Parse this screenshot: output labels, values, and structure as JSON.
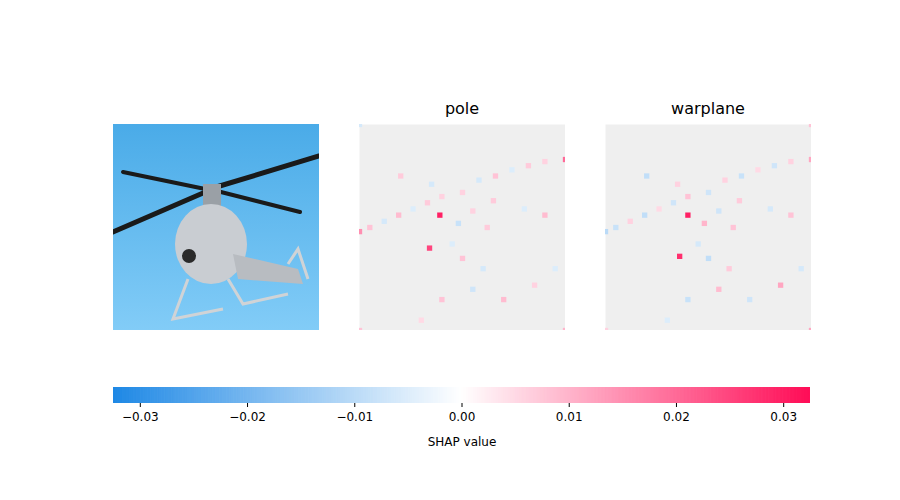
{
  "chart_data": {
    "type": "image_heatmaps",
    "panels": [
      {
        "type": "image"
      },
      {
        "type": "heatmap",
        "title": "pole",
        "image_width": 100,
        "image_height": 100,
        "cells": [
          {
            "x": 39,
            "y": 44,
            "value": 0.03
          },
          {
            "x": 34,
            "y": 60,
            "value": 0.025
          },
          {
            "x": 100,
            "y": 17,
            "value": 0.02
          },
          {
            "x": 0,
            "y": 52,
            "value": 0.015
          },
          {
            "x": 5,
            "y": 50,
            "value": 0.008
          },
          {
            "x": 12,
            "y": 47,
            "value": -0.006
          },
          {
            "x": 19,
            "y": 44,
            "value": 0.009
          },
          {
            "x": 26,
            "y": 41,
            "value": -0.005
          },
          {
            "x": 33,
            "y": 38,
            "value": 0.007
          },
          {
            "x": 40,
            "y": 35,
            "value": 0.006
          },
          {
            "x": 58,
            "y": 27,
            "value": -0.006
          },
          {
            "x": 66,
            "y": 25,
            "value": 0.008
          },
          {
            "x": 74,
            "y": 22,
            "value": -0.005
          },
          {
            "x": 82,
            "y": 20,
            "value": 0.007
          },
          {
            "x": 90,
            "y": 18,
            "value": 0.006
          },
          {
            "x": 20,
            "y": 25,
            "value": 0.007
          },
          {
            "x": 35,
            "y": 29,
            "value": -0.006
          },
          {
            "x": 50,
            "y": 33,
            "value": 0.006
          },
          {
            "x": 65,
            "y": 37,
            "value": 0.007
          },
          {
            "x": 80,
            "y": 41,
            "value": -0.005
          },
          {
            "x": 90,
            "y": 44,
            "value": 0.009
          },
          {
            "x": 48,
            "y": 48,
            "value": -0.008
          },
          {
            "x": 55,
            "y": 42,
            "value": 0.006
          },
          {
            "x": 62,
            "y": 50,
            "value": 0.007
          },
          {
            "x": 50,
            "y": 65,
            "value": 0.008
          },
          {
            "x": 60,
            "y": 70,
            "value": -0.006
          },
          {
            "x": 45,
            "y": 58,
            "value": -0.005
          },
          {
            "x": 40,
            "y": 85,
            "value": 0.008
          },
          {
            "x": 55,
            "y": 80,
            "value": -0.007
          },
          {
            "x": 70,
            "y": 85,
            "value": 0.009
          },
          {
            "x": 85,
            "y": 78,
            "value": 0.006
          },
          {
            "x": 95,
            "y": 70,
            "value": -0.005
          },
          {
            "x": 30,
            "y": 95,
            "value": 0.005
          },
          {
            "x": 0,
            "y": 0,
            "value": -0.006
          },
          {
            "x": 100,
            "y": 100,
            "value": 0.01
          },
          {
            "x": 0,
            "y": 100,
            "value": 0.008
          }
        ]
      },
      {
        "type": "heatmap",
        "title": "warplane",
        "image_width": 100,
        "image_height": 100,
        "cells": [
          {
            "x": 40,
            "y": 44,
            "value": 0.03
          },
          {
            "x": 36,
            "y": 64,
            "value": 0.028
          },
          {
            "x": 100,
            "y": 17,
            "value": 0.012
          },
          {
            "x": 0,
            "y": 52,
            "value": -0.01
          },
          {
            "x": 5,
            "y": 50,
            "value": -0.008
          },
          {
            "x": 12,
            "y": 47,
            "value": 0.006
          },
          {
            "x": 19,
            "y": 44,
            "value": -0.009
          },
          {
            "x": 26,
            "y": 41,
            "value": 0.005
          },
          {
            "x": 33,
            "y": 38,
            "value": -0.007
          },
          {
            "x": 40,
            "y": 35,
            "value": 0.008
          },
          {
            "x": 58,
            "y": 27,
            "value": 0.006
          },
          {
            "x": 66,
            "y": 25,
            "value": -0.008
          },
          {
            "x": 74,
            "y": 22,
            "value": 0.005
          },
          {
            "x": 82,
            "y": 20,
            "value": -0.007
          },
          {
            "x": 90,
            "y": 18,
            "value": 0.006
          },
          {
            "x": 20,
            "y": 25,
            "value": -0.009
          },
          {
            "x": 35,
            "y": 29,
            "value": 0.006
          },
          {
            "x": 50,
            "y": 33,
            "value": -0.007
          },
          {
            "x": 65,
            "y": 37,
            "value": 0.007
          },
          {
            "x": 80,
            "y": 41,
            "value": -0.006
          },
          {
            "x": 90,
            "y": 44,
            "value": 0.008
          },
          {
            "x": 48,
            "y": 48,
            "value": 0.01
          },
          {
            "x": 55,
            "y": 42,
            "value": -0.007
          },
          {
            "x": 62,
            "y": 50,
            "value": 0.008
          },
          {
            "x": 50,
            "y": 65,
            "value": -0.009
          },
          {
            "x": 60,
            "y": 70,
            "value": 0.007
          },
          {
            "x": 45,
            "y": 58,
            "value": -0.006
          },
          {
            "x": 40,
            "y": 85,
            "value": -0.008
          },
          {
            "x": 55,
            "y": 80,
            "value": 0.009
          },
          {
            "x": 70,
            "y": 85,
            "value": -0.007
          },
          {
            "x": 85,
            "y": 78,
            "value": 0.012
          },
          {
            "x": 95,
            "y": 70,
            "value": -0.006
          },
          {
            "x": 30,
            "y": 95,
            "value": -0.005
          },
          {
            "x": 100,
            "y": 0,
            "value": 0.008
          },
          {
            "x": 100,
            "y": 100,
            "value": 0.012
          },
          {
            "x": 0,
            "y": 100,
            "value": 0.006
          }
        ]
      }
    ],
    "colorbar": {
      "label": "SHAP value",
      "lim": [
        -0.0325,
        0.0325
      ],
      "colors": [
        "#1e88e5",
        "#ffffff",
        "#ff0d57"
      ],
      "ticks": [
        {
          "value": -0.03,
          "label": "−0.03"
        },
        {
          "value": -0.02,
          "label": "−0.02"
        },
        {
          "value": -0.01,
          "label": "−0.01"
        },
        {
          "value": 0,
          "label": "0.00"
        },
        {
          "value": 0.01,
          "label": "0.01"
        },
        {
          "value": 0.02,
          "label": "0.02"
        },
        {
          "value": 0.03,
          "label": "0.03"
        }
      ]
    }
  }
}
